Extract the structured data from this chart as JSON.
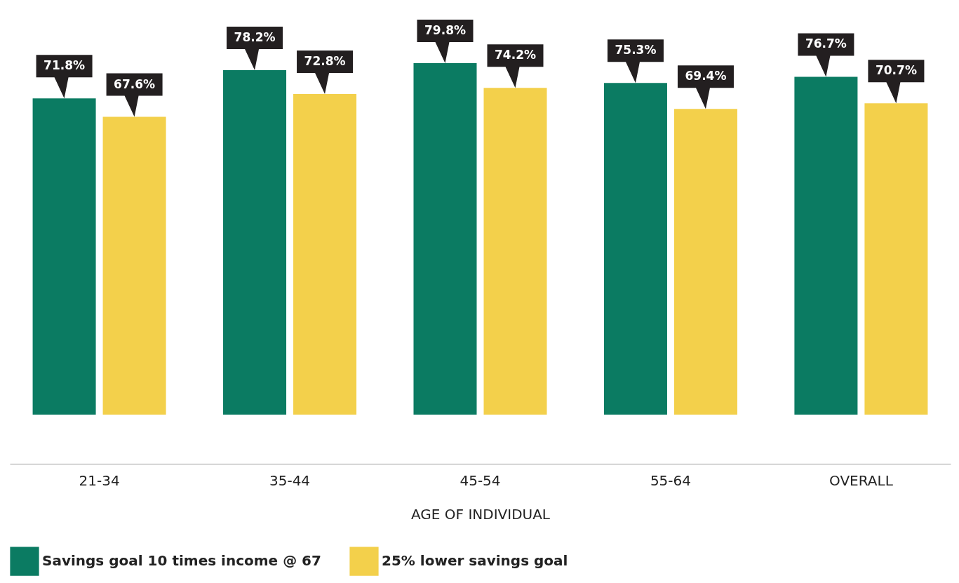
{
  "chart_data": {
    "type": "bar",
    "xlabel": "AGE OF INDIVIDUAL",
    "categories": [
      "21-34",
      "35-44",
      "45-54",
      "55-64",
      "OVERALL"
    ],
    "legend": "bottom",
    "series": [
      {
        "name": "Savings goal 10 times income @ 67",
        "color": "#0b7b62",
        "values": [
          71.8,
          78.2,
          79.8,
          75.3,
          76.7
        ],
        "value_labels": [
          "71.8%",
          "78.2%",
          "79.8%",
          "75.3%",
          "76.7%"
        ]
      },
      {
        "name": "25% lower savings goal",
        "color": "#f3d04b",
        "values": [
          67.6,
          72.8,
          74.2,
          69.4,
          70.7
        ],
        "value_labels": [
          "67.6%",
          "72.8%",
          "74.2%",
          "69.4%",
          "70.7%"
        ]
      }
    ]
  }
}
